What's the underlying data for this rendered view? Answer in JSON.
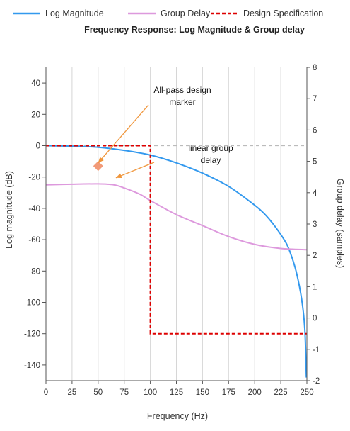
{
  "chart_data": {
    "type": "line",
    "title": "Frequency Response: Log Magnitude & Group delay",
    "xlabel": "Frequency (Hz)",
    "ylabel": "Log magnitude (dB)",
    "y2label": "Group delay (samples)",
    "xlim": [
      0,
      250
    ],
    "ylim": [
      -150,
      50
    ],
    "y2lim": [
      -2,
      8
    ],
    "x_ticks": [
      0,
      25,
      50,
      75,
      100,
      125,
      150,
      175,
      200,
      225,
      250
    ],
    "y_ticks": [
      40,
      20,
      0,
      -20,
      -40,
      -60,
      -80,
      -100,
      -120,
      -140
    ],
    "y2_ticks": [
      8,
      7,
      6,
      5,
      4,
      3,
      2,
      1,
      0,
      -1,
      -2
    ],
    "grid": "vertical",
    "legend_position": "top",
    "legend": [
      {
        "name": "Log Magnitude",
        "color": "#3399ee",
        "style": "solid"
      },
      {
        "name": "Group Delay",
        "color": "#dd99dd",
        "style": "solid"
      },
      {
        "name": "Design Specification",
        "color": "#dd0000",
        "style": "dashed"
      }
    ],
    "series": [
      {
        "name": "Log Magnitude",
        "axis": "left",
        "color": "#3399ee",
        "x": [
          0,
          25,
          50,
          75,
          100,
          125,
          150,
          175,
          200,
          210,
          220,
          230,
          235,
          240,
          245,
          248,
          249.5
        ],
        "y": [
          0,
          -0.3,
          -1,
          -3,
          -6,
          -11,
          -17.5,
          -26,
          -38,
          -44,
          -52,
          -62,
          -70,
          -81,
          -98,
          -117,
          -148
        ]
      },
      {
        "name": "Group Delay",
        "axis": "right",
        "color": "#dd99dd",
        "x": [
          0,
          25,
          50,
          65,
          75,
          90,
          100,
          125,
          150,
          175,
          200,
          225,
          250
        ],
        "y": [
          4.25,
          4.27,
          4.28,
          4.25,
          4.15,
          3.95,
          3.75,
          3.3,
          2.95,
          2.6,
          2.35,
          2.22,
          2.18
        ]
      },
      {
        "name": "Design Specification",
        "axis": "left",
        "color": "#dd0000",
        "style": "dashed",
        "x": [
          0,
          100,
          100,
          250
        ],
        "y": [
          0,
          0,
          -120,
          -120
        ]
      }
    ],
    "reference_line": {
      "axis": "left",
      "y": 0,
      "color": "#bbbbbb",
      "style": "dashed"
    },
    "marker": {
      "x": 50,
      "y": -13,
      "shape": "diamond",
      "color": "#f29a78"
    },
    "annotations": [
      {
        "lines": [
          "All-pass design",
          "marker"
        ],
        "target_x": 50,
        "target_y": -11,
        "color": "#f0953a"
      },
      {
        "lines": [
          "linear group",
          "delay"
        ],
        "target_x": 67,
        "target_y": -20.5,
        "color": "#f0953a"
      }
    ]
  }
}
